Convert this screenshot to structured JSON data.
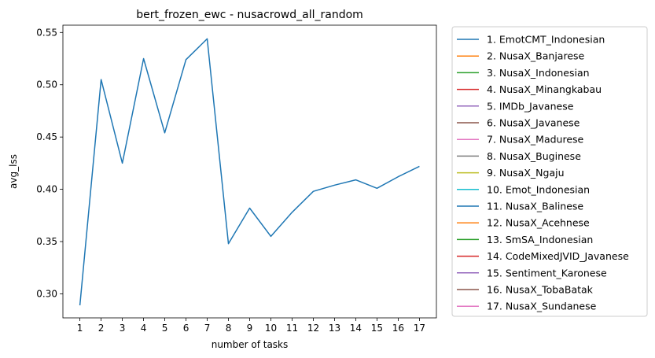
{
  "chart_data": {
    "type": "line",
    "title": "bert_frozen_ewc - nusacrowd_all_random",
    "xlabel": "number of tasks",
    "ylabel": "avg_lss",
    "x": [
      1,
      2,
      3,
      4,
      5,
      6,
      7,
      8,
      9,
      10,
      11,
      12,
      13,
      14,
      15,
      16,
      17
    ],
    "xlim": [
      0.2,
      17.8
    ],
    "ylim": [
      0.277,
      0.557
    ],
    "yticks": [
      "0.30",
      "0.35",
      "0.40",
      "0.45",
      "0.50",
      "0.55"
    ],
    "grid": false,
    "legend_placement": "outside-right",
    "series": [
      {
        "name": "1. EmotCMT_Indonesian",
        "color": "#1f77b4",
        "values": [
          0.289,
          0.505,
          0.425,
          0.525,
          0.454,
          0.524,
          0.544,
          0.348,
          0.382,
          0.355,
          0.378,
          0.398,
          0.404,
          0.409,
          0.401,
          0.412,
          0.422
        ]
      }
    ],
    "legend": [
      {
        "label": "1. EmotCMT_Indonesian",
        "color": "#1f77b4"
      },
      {
        "label": "2. NusaX_Banjarese",
        "color": "#ff7f0e"
      },
      {
        "label": "3. NusaX_Indonesian",
        "color": "#2ca02c"
      },
      {
        "label": "4. NusaX_Minangkabau",
        "color": "#d62728"
      },
      {
        "label": "5. IMDb_Javanese",
        "color": "#9467bd"
      },
      {
        "label": "6. NusaX_Javanese",
        "color": "#8c564b"
      },
      {
        "label": "7. NusaX_Madurese",
        "color": "#e377c2"
      },
      {
        "label": "8. NusaX_Buginese",
        "color": "#7f7f7f"
      },
      {
        "label": "9. NusaX_Ngaju",
        "color": "#bcbd22"
      },
      {
        "label": "10. Emot_Indonesian",
        "color": "#17becf"
      },
      {
        "label": "11. NusaX_Balinese",
        "color": "#1f77b4"
      },
      {
        "label": "12. NusaX_Acehnese",
        "color": "#ff7f0e"
      },
      {
        "label": "13. SmSA_Indonesian",
        "color": "#2ca02c"
      },
      {
        "label": "14. CodeMixedJVID_Javanese",
        "color": "#d62728"
      },
      {
        "label": "15. Sentiment_Karonese",
        "color": "#9467bd"
      },
      {
        "label": "16. NusaX_TobaBatak",
        "color": "#8c564b"
      },
      {
        "label": "17. NusaX_Sundanese",
        "color": "#e377c2"
      }
    ]
  }
}
